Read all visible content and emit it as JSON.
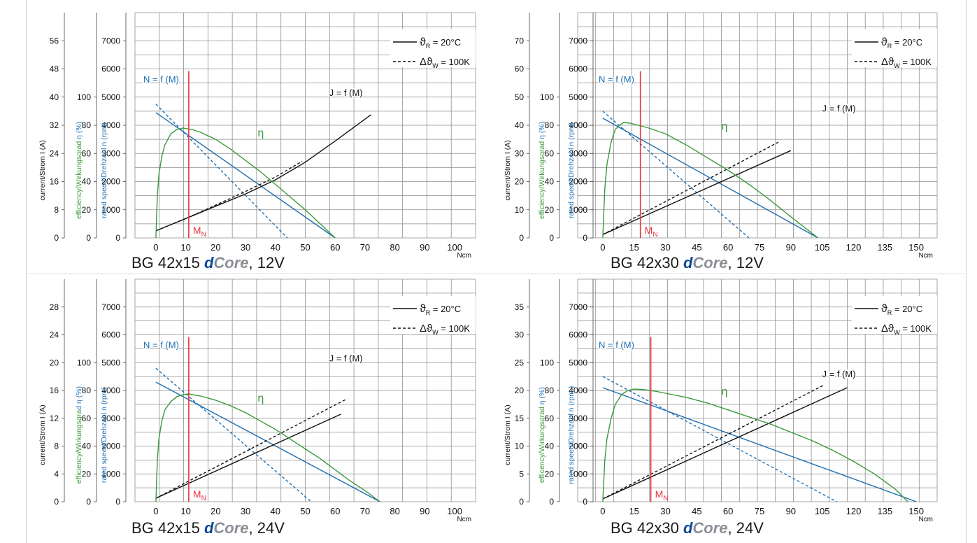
{
  "colors": {
    "grid": "#8e8e8e",
    "black": "#111111",
    "blue": "#1f6fb2",
    "green": "#3a9a3a",
    "red": "#e8333c"
  },
  "chart_data": [
    {
      "type": "line",
      "caption": {
        "prefix": "BG 42x15 ",
        "brand_d": "d",
        "brand_core": "Core",
        "suffix": ", 12V"
      },
      "xunit": "Ncm",
      "xticks": [
        0,
        10,
        20,
        30,
        40,
        50,
        60,
        70,
        80,
        90,
        100
      ],
      "xlim": [
        -7,
        107
      ],
      "axes": [
        {
          "label": "current/Strom I (A)",
          "ticks": [
            0,
            8,
            16,
            24,
            32,
            40,
            48,
            56
          ],
          "max": 64
        },
        {
          "label_a": "efficiency/Wirkungsgrad ",
          "label_b": "η (%)",
          "ticks": [
            0,
            20,
            40,
            60,
            80,
            100
          ],
          "max": 160
        },
        {
          "label": "rated speed/Drehzahl n (rpm)",
          "ticks": [
            0,
            1000,
            2000,
            3000,
            4000,
            5000,
            6000,
            7000
          ],
          "max": 8000
        }
      ],
      "legend": {
        "solid_sym": "ϑ",
        "solid_sub": "R",
        "solid_val": " = 20°C",
        "dash_sym": "Δϑ",
        "dash_sub": "W",
        "dash_val": " = 100K"
      },
      "labels": {
        "speed": "N = f (M)",
        "current": "J = f (M)",
        "efficiency": "η",
        "mn_main": "M",
        "mn_sub": "N"
      },
      "mn": 11,
      "series": [
        {
          "name": "N = f (M)",
          "color": "blue",
          "dash": false,
          "axis": 2,
          "x": [
            0,
            60
          ],
          "y": [
            4450,
            0
          ]
        },
        {
          "name": "N = f (M)",
          "color": "blue",
          "dash": true,
          "axis": 2,
          "x": [
            0,
            44
          ],
          "y": [
            4750,
            0
          ]
        },
        {
          "name": "J = f (M)",
          "color": "black",
          "dash": false,
          "axis": 0,
          "x": [
            0,
            10,
            20,
            30,
            40,
            50,
            60,
            72
          ],
          "y": [
            2,
            5.5,
            9,
            12.5,
            16.5,
            21.5,
            27.5,
            35
          ]
        },
        {
          "name": "J = f (M)",
          "color": "black",
          "dash": true,
          "axis": 0,
          "x": [
            0,
            10,
            20,
            30,
            40,
            49
          ],
          "y": [
            2,
            5.5,
            9.3,
            13.2,
            17.3,
            21.8
          ]
        },
        {
          "name": "η",
          "color": "green",
          "dash": false,
          "axis": 1,
          "x": [
            0,
            0.5,
            1,
            2,
            3,
            5,
            7,
            9,
            12,
            15,
            20,
            25,
            30,
            35,
            40,
            45,
            50,
            55,
            60
          ],
          "y": [
            0,
            30,
            45,
            58,
            66,
            74,
            77,
            78,
            77,
            75,
            70,
            63,
            55,
            47,
            38,
            29,
            20,
            10,
            0
          ]
        }
      ]
    },
    {
      "type": "line",
      "caption": {
        "prefix": "BG 42x30 ",
        "brand_d": "d",
        "brand_core": "Core",
        "suffix": ", 12V"
      },
      "xunit": "Ncm",
      "xticks": [
        0,
        15,
        30,
        45,
        60,
        75,
        90,
        105,
        120,
        135,
        150
      ],
      "xlim": [
        -12,
        160
      ],
      "axes": [
        {
          "label": "current/Strom I (A)",
          "ticks": [
            0,
            10,
            20,
            30,
            40,
            50,
            60,
            70
          ],
          "max": 80
        },
        {
          "label_a": "efficiency/Wirkungsgrad ",
          "label_b": "η (%)",
          "ticks": [
            0,
            20,
            40,
            60,
            80,
            100
          ],
          "max": 160
        },
        {
          "label": "rated speed/Drehzahl n (rpm)",
          "ticks": [
            0,
            1000,
            2000,
            3000,
            4000,
            5000,
            6000,
            7000
          ],
          "max": 8000
        }
      ],
      "legend": {
        "solid_sym": "ϑ",
        "solid_sub": "R",
        "solid_val": " = 20°C",
        "dash_sym": "Δϑ",
        "dash_sub": "W",
        "dash_val": " = 100K"
      },
      "labels": {
        "speed": "N = f (M)",
        "current": "J = f (M)",
        "efficiency": "η",
        "mn_main": "M",
        "mn_sub": "N"
      },
      "mn": 18,
      "series": [
        {
          "name": "N = f (M)",
          "color": "blue",
          "dash": false,
          "axis": 2,
          "x": [
            0,
            103
          ],
          "y": [
            4250,
            0
          ]
        },
        {
          "name": "N = f (M)",
          "color": "blue",
          "dash": true,
          "axis": 2,
          "x": [
            0,
            70
          ],
          "y": [
            4500,
            0
          ]
        },
        {
          "name": "J = f (M)",
          "color": "black",
          "dash": false,
          "axis": 0,
          "x": [
            0,
            90
          ],
          "y": [
            1.2,
            31
          ]
        },
        {
          "name": "J = f (M)",
          "color": "black",
          "dash": true,
          "axis": 0,
          "x": [
            0,
            84
          ],
          "y": [
            1.2,
            34
          ]
        },
        {
          "name": "η",
          "color": "green",
          "dash": false,
          "axis": 1,
          "x": [
            0,
            1,
            2,
            4,
            6,
            8,
            10,
            13,
            17,
            22,
            30,
            40,
            50,
            60,
            70,
            80,
            90,
            103
          ],
          "y": [
            0,
            35,
            52,
            68,
            77,
            80,
            82,
            81.5,
            80,
            78,
            74,
            66,
            57,
            48,
            38,
            27,
            15,
            0
          ]
        }
      ]
    },
    {
      "type": "line",
      "caption": {
        "prefix": "BG 42x15 ",
        "brand_d": "d",
        "brand_core": "Core",
        "suffix": ", 24V"
      },
      "xunit": "Ncm",
      "xticks": [
        0,
        10,
        20,
        30,
        40,
        50,
        60,
        70,
        80,
        90,
        100
      ],
      "xlim": [
        -7,
        107
      ],
      "axes": [
        {
          "label": "current/Strom   I (A)",
          "ticks": [
            0,
            4,
            8,
            12,
            16,
            20,
            24,
            28
          ],
          "max": 32
        },
        {
          "label_a": "efficiency/Wirkungsgra",
          "label_b": "d η (%)",
          "ticks": [
            0,
            20,
            40,
            60,
            80,
            100
          ],
          "max": 160
        },
        {
          "label": "rated speed/Drehzahl  n (rpm)",
          "ticks": [
            0,
            1000,
            2000,
            3000,
            4000,
            5000,
            6000,
            7000
          ],
          "max": 8000
        }
      ],
      "legend": {
        "solid_sym": "ϑ",
        "solid_sub": "R",
        "solid_val": " = 20°C",
        "dash_sym": "Δϑ",
        "dash_sub": "W",
        "dash_val": " = 100K"
      },
      "labels": {
        "speed": "N = f (M)",
        "current": "J = f (M)",
        "efficiency": "η",
        "mn_main": "M",
        "mn_sub": "N"
      },
      "mn": 11,
      "series": [
        {
          "name": "N = f (M)",
          "color": "blue",
          "dash": false,
          "axis": 2,
          "x": [
            0,
            75
          ],
          "y": [
            4300,
            0
          ]
        },
        {
          "name": "N = f (M)",
          "color": "blue",
          "dash": true,
          "axis": 2,
          "x": [
            0,
            52
          ],
          "y": [
            4800,
            0
          ]
        },
        {
          "name": "J = f (M)",
          "color": "black",
          "dash": false,
          "axis": 0,
          "x": [
            0,
            62
          ],
          "y": [
            0.5,
            12.6
          ]
        },
        {
          "name": "J = f (M)",
          "color": "black",
          "dash": true,
          "axis": 0,
          "x": [
            0,
            64
          ],
          "y": [
            0.5,
            14.8
          ]
        },
        {
          "name": "η",
          "color": "green",
          "dash": false,
          "axis": 1,
          "x": [
            0,
            0.5,
            1,
            2,
            3,
            5,
            7,
            9,
            11,
            15,
            20,
            25,
            30,
            35,
            40,
            45,
            50,
            55,
            60,
            65,
            70,
            75
          ],
          "y": [
            0,
            30,
            45,
            58,
            66,
            72,
            75.5,
            77,
            77.5,
            76,
            73,
            69,
            64,
            58,
            52,
            45,
            38,
            31,
            23,
            15,
            8,
            0
          ]
        }
      ]
    },
    {
      "type": "line",
      "caption": {
        "prefix": "BG 42x30 ",
        "brand_d": "d",
        "brand_core": "Core",
        "suffix": ", 24V"
      },
      "xunit": "Ncm",
      "xticks": [
        0,
        15,
        30,
        45,
        60,
        75,
        90,
        105,
        120,
        135,
        150
      ],
      "xlim": [
        -12,
        160
      ],
      "axes": [
        {
          "label": "current/Strom   I (A)",
          "ticks": [
            0,
            5,
            10,
            15,
            20,
            25,
            30,
            35
          ],
          "max": 40
        },
        {
          "label_a": "efficency/Wirkungsgrad ",
          "label_b": "η (%)",
          "ticks": [
            0,
            20,
            40,
            60,
            80,
            100
          ],
          "max": 160
        },
        {
          "label": "rated speed/Drehzahl  n (rpm )",
          "ticks": [
            0,
            1000,
            2000,
            3000,
            4000,
            5000,
            6000,
            7000
          ],
          "max": 8000
        }
      ],
      "legend": {
        "solid_sym": "ϑ",
        "solid_sub": "R",
        "solid_val": " = 20°C",
        "dash_sym": "Δϑ",
        "dash_sub": "W",
        "dash_val": " = 100K"
      },
      "labels": {
        "speed": "N = f (M)",
        "current": "J = f (M)",
        "efficiency": "η",
        "mn_main": "M",
        "mn_sub": "N"
      },
      "mn": 23,
      "series": [
        {
          "name": "N = f (M)",
          "color": "blue",
          "dash": false,
          "axis": 2,
          "x": [
            0,
            150
          ],
          "y": [
            4100,
            0
          ]
        },
        {
          "name": "N = f (M)",
          "color": "blue",
          "dash": true,
          "axis": 2,
          "x": [
            0,
            112
          ],
          "y": [
            4500,
            0
          ]
        },
        {
          "name": "J = f (M)",
          "color": "black",
          "dash": false,
          "axis": 0,
          "x": [
            0,
            117
          ],
          "y": [
            0.5,
            20.5
          ]
        },
        {
          "name": "J = f (M)",
          "color": "black",
          "dash": true,
          "axis": 0,
          "x": [
            0,
            106
          ],
          "y": [
            0.5,
            21
          ]
        },
        {
          "name": "η",
          "color": "green",
          "dash": false,
          "axis": 1,
          "x": [
            0,
            1,
            2,
            4,
            6,
            9,
            12,
            15,
            20,
            25,
            30,
            40,
            50,
            60,
            70,
            80,
            90,
            100,
            110,
            120,
            130,
            140,
            146
          ],
          "y": [
            0,
            30,
            45,
            60,
            70,
            77,
            80,
            81,
            80.5,
            79.5,
            78,
            75,
            71,
            66,
            61,
            56,
            50,
            44,
            37,
            29,
            20,
            9,
            0
          ]
        }
      ]
    }
  ]
}
